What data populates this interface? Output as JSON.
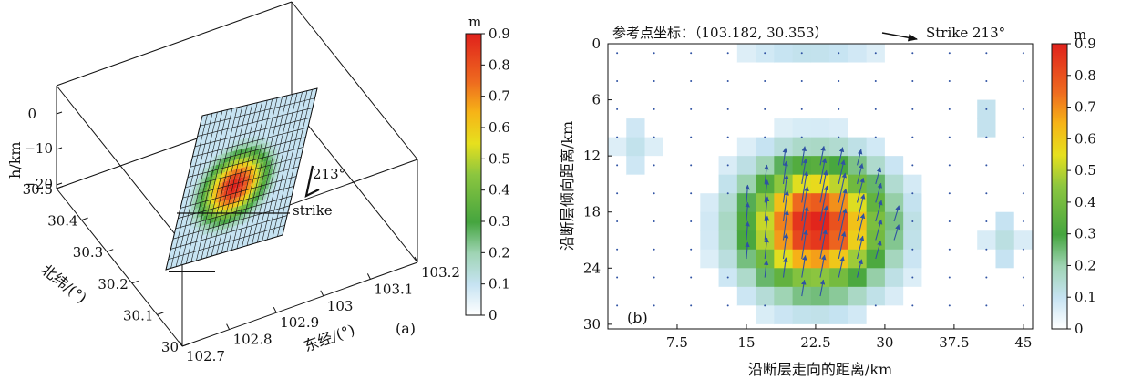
{
  "chart_data": [
    {
      "type": "surface3d",
      "panel_label": "(a)",
      "xlabel": "东经/(°)",
      "ylabel": "北纬/(°)",
      "zlabel": "h/km",
      "x_ticks": [
        "102.7",
        "102.8",
        "102.9",
        "103",
        "103.1",
        "103.2"
      ],
      "y_ticks": [
        "30",
        "30.1",
        "30.2",
        "30.3",
        "30.4",
        "30.5"
      ],
      "z_ticks": [
        "0",
        "−10",
        "−20"
      ],
      "xlim": [
        102.7,
        103.2
      ],
      "ylim": [
        30,
        30.5
      ],
      "zlim": [
        -20,
        0
      ],
      "strike_label": "strike",
      "strike_angle_label": "213°",
      "colorbar": {
        "unit": "m",
        "ticks": [
          "0",
          "0.1",
          "0.2",
          "0.3",
          "0.4",
          "0.5",
          "0.6",
          "0.7",
          "0.8",
          "0.9"
        ],
        "range": [
          0,
          0.9
        ]
      },
      "slip_peak": {
        "value": 0.9,
        "along_strike": 0.45,
        "down_dip": 0.55
      }
    },
    {
      "type": "heatmap",
      "panel_label": "(b)",
      "title": "参考点坐标：（103.182, 30.353）",
      "strike_arrow_label": "Strike 213°",
      "xlabel": "沿断层走向的距离/km",
      "ylabel": "沿断层倾向距离/km",
      "x_ticks": [
        "7.5",
        "15",
        "22.5",
        "30",
        "37.5",
        "45"
      ],
      "x_tick_values": [
        7.5,
        15,
        22.5,
        30,
        37.5,
        45
      ],
      "y_ticks": [
        "0",
        "6",
        "12",
        "18",
        "24",
        "30"
      ],
      "y_tick_values": [
        0,
        6,
        12,
        18,
        24,
        30
      ],
      "xlim": [
        0,
        46
      ],
      "ylim": [
        0,
        30.5
      ],
      "grid": {
        "nx": 23,
        "ny": 15,
        "cell_km": 2
      },
      "slip_max": 0.9,
      "colorbar": {
        "unit": "m",
        "ticks": [
          "0",
          "0.1",
          "0.2",
          "0.3",
          "0.4",
          "0.5",
          "0.6",
          "0.7",
          "0.8",
          "0.9"
        ],
        "range": [
          0,
          0.9
        ]
      },
      "colors": {
        "0.00": "#ffffff",
        "0.11": "#c6e3f2",
        "0.22": "#9fd4b4",
        "0.33": "#45a53f",
        "0.50": "#8cc63f",
        "0.61": "#e6e01e",
        "0.72": "#f6b417",
        "0.83": "#ee6a1f",
        "1.00": "#e0211c",
        "vector": "#2f52a3"
      }
    }
  ]
}
